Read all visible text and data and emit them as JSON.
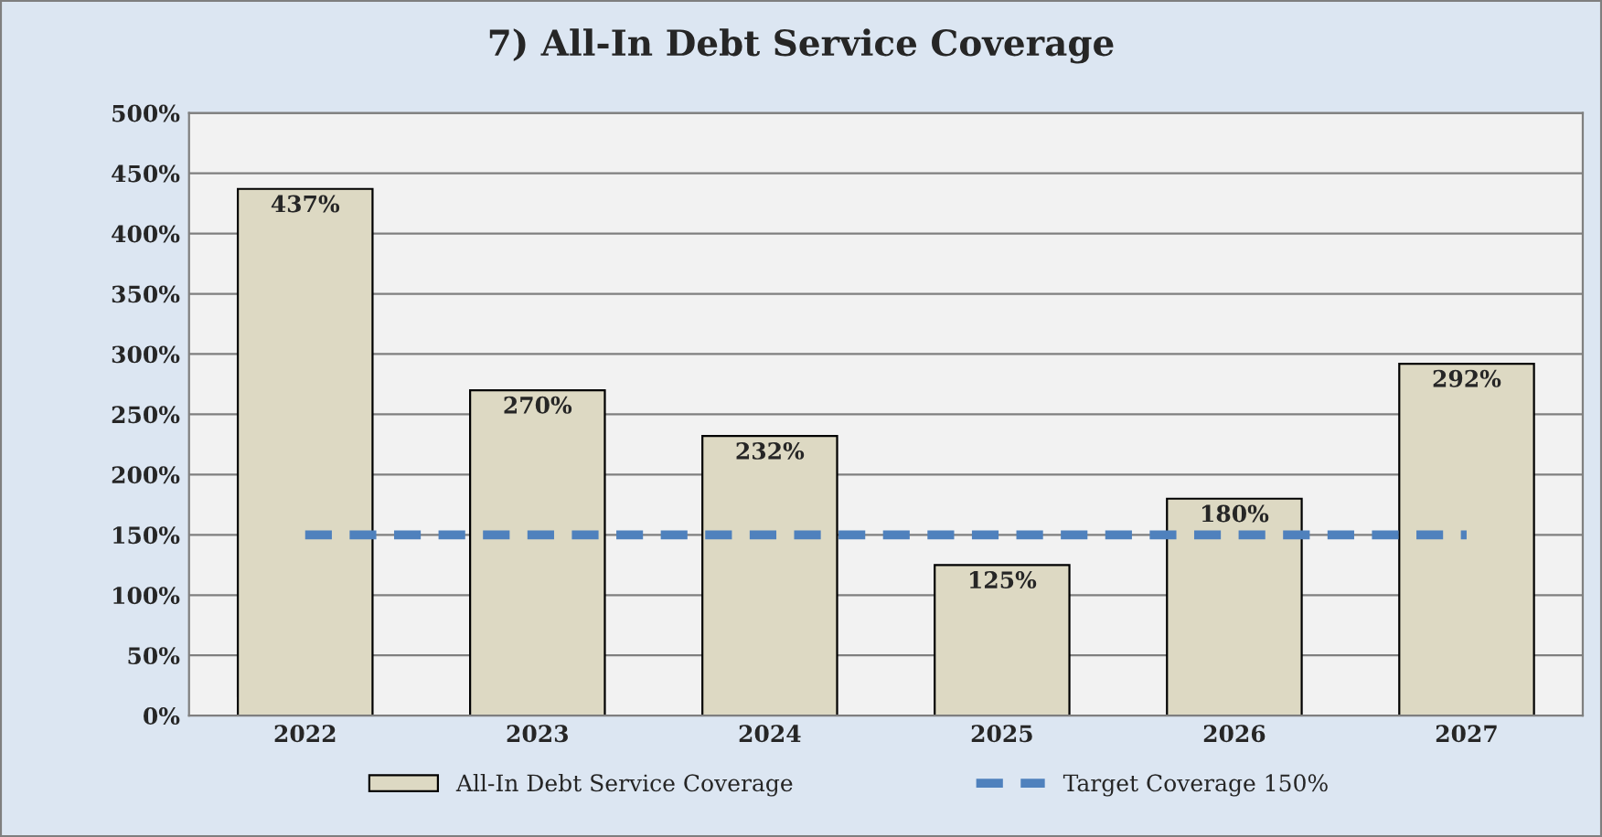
{
  "chart_data": {
    "type": "bar",
    "title": "7) All-In Debt Service Coverage",
    "categories": [
      "2022",
      "2023",
      "2024",
      "2025",
      "2026",
      "2027"
    ],
    "series": [
      {
        "name": "All-In Debt Service Coverage",
        "color": "#ddd9c3",
        "values": [
          437,
          270,
          232,
          125,
          180,
          292
        ],
        "value_labels": [
          "437%",
          "270%",
          "232%",
          "125%",
          "180%",
          "292%"
        ]
      },
      {
        "name": "Target Coverage 150%",
        "type": "line",
        "color": "#4f81bd",
        "line_style": "dashed",
        "values": [
          150,
          150,
          150,
          150,
          150,
          150
        ]
      }
    ],
    "ylim": [
      0,
      500
    ],
    "yticks": [
      {
        "value": 0,
        "label": "0%"
      },
      {
        "value": 50,
        "label": "50%"
      },
      {
        "value": 100,
        "label": "100%"
      },
      {
        "value": 150,
        "label": "150%"
      },
      {
        "value": 200,
        "label": "200%"
      },
      {
        "value": 250,
        "label": "250%"
      },
      {
        "value": 300,
        "label": "300%"
      },
      {
        "value": 350,
        "label": "350%"
      },
      {
        "value": 400,
        "label": "400%"
      },
      {
        "value": 450,
        "label": "450%"
      },
      {
        "value": 500,
        "label": "500%"
      }
    ],
    "grid": "y",
    "legend": "bottom"
  }
}
